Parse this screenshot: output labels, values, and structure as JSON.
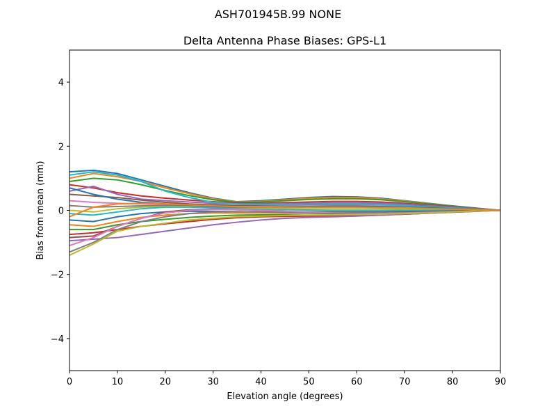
{
  "suptitle": "ASH701945B.99   NONE",
  "chart_data": {
    "type": "line",
    "title": "Delta Antenna Phase Biases: GPS-L1",
    "xlabel": "Elevation angle (degrees)",
    "ylabel": "Bias from mean (mm)",
    "xlim": [
      0,
      90
    ],
    "ylim": [
      -5,
      5
    ],
    "xticks": [
      0,
      10,
      20,
      30,
      40,
      50,
      60,
      70,
      80,
      90
    ],
    "yticks": [
      -4,
      -2,
      0,
      2,
      4
    ],
    "ytick_labels": [
      "−4",
      "−2",
      "0",
      "2",
      "4"
    ],
    "grid": false,
    "legend": "none",
    "colors": [
      "#1f77b4",
      "#ff7f0e",
      "#2ca02c",
      "#d62728",
      "#9467bd",
      "#8c564b",
      "#e377c2",
      "#7f7f7f",
      "#bcbd22",
      "#17becf"
    ],
    "x": [
      0,
      5,
      10,
      15,
      20,
      25,
      30,
      35,
      40,
      45,
      50,
      55,
      60,
      65,
      70,
      75,
      80,
      85,
      90
    ],
    "series": [
      {
        "values": [
          1.2,
          1.25,
          1.15,
          0.95,
          0.75,
          0.55,
          0.38,
          0.27,
          0.3,
          0.35,
          0.4,
          0.43,
          0.42,
          0.38,
          0.3,
          0.22,
          0.14,
          0.07,
          0
        ]
      },
      {
        "values": [
          1.0,
          1.15,
          1.05,
          0.9,
          0.7,
          0.52,
          0.36,
          0.26,
          0.28,
          0.33,
          0.38,
          0.4,
          0.4,
          0.36,
          0.29,
          0.21,
          0.13,
          0.06,
          0
        ]
      },
      {
        "values": [
          0.9,
          1.0,
          0.95,
          0.8,
          0.62,
          0.46,
          0.33,
          0.25,
          0.26,
          0.3,
          0.34,
          0.36,
          0.36,
          0.33,
          0.27,
          0.2,
          0.13,
          0.06,
          0
        ]
      },
      {
        "values": [
          0.8,
          0.7,
          0.55,
          0.45,
          0.38,
          0.32,
          0.27,
          0.23,
          0.22,
          0.24,
          0.26,
          0.28,
          0.28,
          0.26,
          0.22,
          0.17,
          0.11,
          0.05,
          0
        ]
      },
      {
        "values": [
          0.6,
          0.75,
          0.5,
          0.35,
          0.3,
          0.26,
          0.22,
          0.2,
          0.2,
          0.21,
          0.22,
          0.23,
          0.23,
          0.22,
          0.19,
          0.15,
          0.1,
          0.05,
          0
        ]
      },
      {
        "values": [
          0.5,
          0.45,
          0.4,
          0.32,
          0.25,
          0.2,
          0.17,
          0.15,
          0.15,
          0.16,
          0.17,
          0.18,
          0.18,
          0.17,
          0.15,
          0.12,
          0.08,
          0.04,
          0
        ]
      },
      {
        "values": [
          0.3,
          0.25,
          0.22,
          0.2,
          0.18,
          0.15,
          0.13,
          0.12,
          0.12,
          0.13,
          0.14,
          0.15,
          0.15,
          0.14,
          0.12,
          0.1,
          0.07,
          0.03,
          0
        ]
      },
      {
        "values": [
          0.15,
          0.1,
          0.12,
          0.14,
          0.15,
          0.14,
          0.12,
          0.1,
          0.09,
          0.09,
          0.1,
          0.1,
          0.1,
          0.09,
          0.08,
          0.06,
          0.04,
          0.02,
          0
        ]
      },
      {
        "values": [
          0.0,
          -0.05,
          0.05,
          0.1,
          0.12,
          0.12,
          0.1,
          0.08,
          0.06,
          0.05,
          0.05,
          0.05,
          0.05,
          0.05,
          0.04,
          0.03,
          0.02,
          0.01,
          0
        ]
      },
      {
        "values": [
          -0.1,
          -0.15,
          -0.05,
          0.05,
          0.1,
          0.1,
          0.08,
          0.05,
          0.03,
          0.02,
          0.01,
          0.0,
          0.0,
          0.0,
          0.0,
          0.0,
          0.0,
          0.0,
          0
        ]
      },
      {
        "values": [
          -0.3,
          -0.35,
          -0.2,
          -0.1,
          -0.05,
          -0.03,
          -0.03,
          -0.04,
          -0.05,
          -0.05,
          -0.05,
          -0.05,
          -0.05,
          -0.05,
          -0.04,
          -0.03,
          -0.02,
          -0.01,
          0
        ]
      },
      {
        "values": [
          -0.45,
          -0.5,
          -0.35,
          -0.22,
          -0.15,
          -0.1,
          -0.08,
          -0.08,
          -0.08,
          -0.09,
          -0.09,
          -0.1,
          -0.1,
          -0.09,
          -0.08,
          -0.06,
          -0.04,
          -0.02,
          0
        ]
      },
      {
        "values": [
          -0.6,
          -0.6,
          -0.45,
          -0.35,
          -0.28,
          -0.22,
          -0.18,
          -0.15,
          -0.14,
          -0.14,
          -0.15,
          -0.15,
          -0.15,
          -0.13,
          -0.11,
          -0.08,
          -0.05,
          -0.02,
          0
        ]
      },
      {
        "values": [
          -0.75,
          -0.7,
          -0.6,
          -0.5,
          -0.42,
          -0.35,
          -0.28,
          -0.23,
          -0.2,
          -0.19,
          -0.18,
          -0.18,
          -0.17,
          -0.15,
          -0.12,
          -0.09,
          -0.06,
          -0.03,
          0
        ]
      },
      {
        "values": [
          -0.95,
          -0.9,
          -0.85,
          -0.75,
          -0.65,
          -0.55,
          -0.45,
          -0.37,
          -0.3,
          -0.25,
          -0.22,
          -0.2,
          -0.18,
          -0.15,
          -0.12,
          -0.09,
          -0.06,
          -0.03,
          0
        ]
      },
      {
        "values": [
          -0.85,
          -0.8,
          -0.5,
          -0.25,
          -0.05,
          0.02,
          0.04,
          0.02,
          0.0,
          -0.03,
          -0.05,
          -0.06,
          -0.07,
          -0.07,
          -0.06,
          -0.05,
          -0.03,
          -0.01,
          0
        ]
      },
      {
        "values": [
          -1.1,
          -0.85,
          -0.5,
          -0.25,
          -0.08,
          0.0,
          0.03,
          0.02,
          0.0,
          -0.03,
          -0.06,
          -0.08,
          -0.09,
          -0.09,
          -0.08,
          -0.06,
          -0.04,
          -0.02,
          0
        ]
      },
      {
        "values": [
          -1.3,
          -1.0,
          -0.6,
          -0.35,
          -0.2,
          -0.1,
          -0.05,
          -0.04,
          -0.05,
          -0.07,
          -0.09,
          -0.1,
          -0.11,
          -0.11,
          -0.1,
          -0.08,
          -0.05,
          -0.02,
          0
        ]
      },
      {
        "values": [
          -1.4,
          -1.05,
          -0.65,
          -0.5,
          -0.4,
          -0.3,
          -0.25,
          -0.2,
          -0.18,
          -0.16,
          -0.15,
          -0.14,
          -0.13,
          -0.12,
          -0.1,
          -0.08,
          -0.05,
          -0.02,
          0
        ]
      },
      {
        "values": [
          1.1,
          1.2,
          1.1,
          0.9,
          0.6,
          0.4,
          0.25,
          0.2,
          0.18,
          0.18,
          0.19,
          0.2,
          0.2,
          0.18,
          0.15,
          0.11,
          0.07,
          0.03,
          0
        ]
      },
      {
        "values": [
          0.7,
          0.5,
          0.35,
          0.25,
          0.2,
          0.16,
          0.12,
          0.1,
          0.1,
          0.11,
          0.12,
          0.13,
          0.13,
          0.12,
          0.1,
          0.08,
          0.05,
          0.02,
          0
        ]
      },
      {
        "values": [
          -0.2,
          0.1,
          0.2,
          0.22,
          0.2,
          0.17,
          0.14,
          0.11,
          0.1,
          0.1,
          0.1,
          0.1,
          0.1,
          0.09,
          0.08,
          0.06,
          0.04,
          0.02,
          0
        ]
      }
    ]
  }
}
